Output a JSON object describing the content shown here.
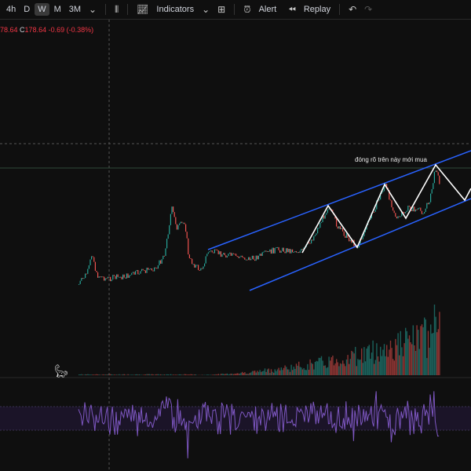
{
  "toolbar": {
    "intervals": [
      "4h",
      "D",
      "W",
      "M",
      "3M"
    ],
    "active_interval": "W",
    "indicators_label": "Indicators",
    "alert_label": "Alert",
    "replay_label": "Replay"
  },
  "legend": {
    "open_partial": "78.64",
    "close_label": "C",
    "close": "178.64",
    "change": "-0.69",
    "change_pct": "(-0.38%)"
  },
  "annotation": {
    "text": "đóng rõ trên này mới mua"
  },
  "colors": {
    "up": "#26a69a",
    "down": "#ef5350",
    "channel": "#2962ff",
    "rsi": "#7e57c2",
    "background": "#0f0f0f"
  }
}
